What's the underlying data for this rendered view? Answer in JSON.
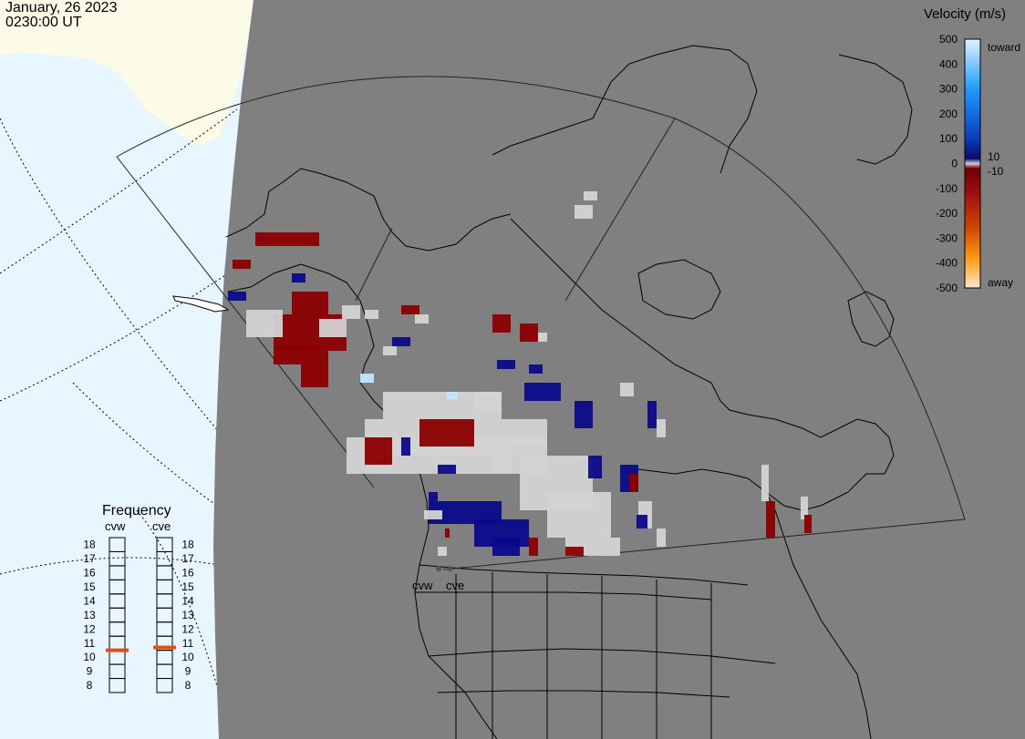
{
  "header": {
    "date": "January, 26 2023",
    "time": "0230:00 UT"
  },
  "velocity_scale": {
    "title": "Velocity (m/s)",
    "ticks": [
      "500",
      "400",
      "300",
      "200",
      "100",
      "0",
      "-100",
      "-200",
      "-300",
      "-400",
      "-500"
    ],
    "near_zero_pos": "10",
    "near_zero_neg": "-10",
    "toward_label": "toward",
    "away_label": "away",
    "colors": {
      "toward_high": "#dff4ff",
      "toward_mid": "#1e88e5",
      "toward_low": "#0d1a8c",
      "gray_zero": "#d0d0d0",
      "away_low": "#8b0000",
      "away_mid": "#e07000",
      "away_high": "#ffe0c0"
    }
  },
  "frequency_panel": {
    "title": "Frequency",
    "radars": [
      {
        "name": "cvw",
        "frequency_mhz": 10.5
      },
      {
        "name": "cve",
        "frequency_mhz": 10.7
      }
    ],
    "scale_min": 8,
    "scale_max": 18,
    "ticks": [
      "18",
      "17",
      "16",
      "15",
      "14",
      "13",
      "12",
      "11",
      "10",
      "9",
      "8"
    ]
  },
  "map": {
    "ocean_color": "#e8f6ff",
    "land_color": "#808080",
    "outline_color": "#000000",
    "radar_sites": [
      {
        "label": "cvw"
      },
      {
        "label": "cve"
      }
    ]
  }
}
